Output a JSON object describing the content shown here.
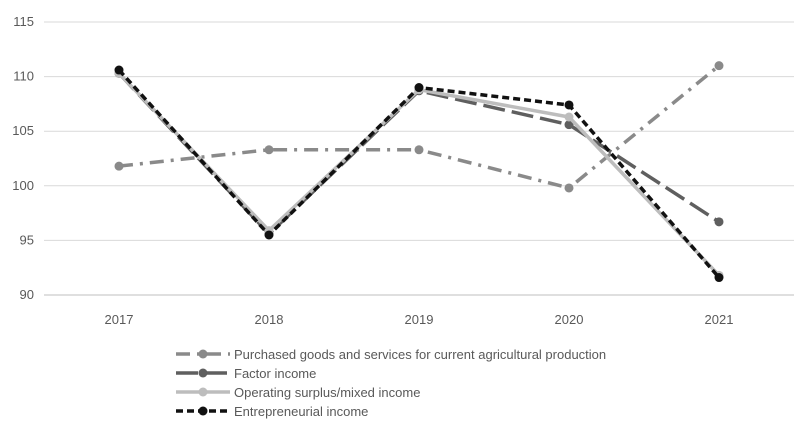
{
  "chart_data": {
    "type": "line",
    "categories": [
      "2017",
      "2018",
      "2019",
      "2020",
      "2021"
    ],
    "ylim": [
      90,
      115
    ],
    "yticks": [
      90,
      95,
      100,
      105,
      110,
      115
    ],
    "grid": true,
    "legend_position": "bottom",
    "series": [
      {
        "name": "Purchased goods and services for current agricultural production",
        "values": [
          101.8,
          103.3,
          103.3,
          99.8,
          111.0
        ],
        "color": "#8a8a8a",
        "dash": "dash-dot"
      },
      {
        "name": "Factor income",
        "values": [
          110.3,
          95.6,
          108.7,
          105.6,
          96.7
        ],
        "color": "#5f5f5f",
        "dash": "long-dash"
      },
      {
        "name": "Operating surplus/mixed income",
        "values": [
          110.3,
          95.9,
          108.8,
          106.3,
          91.8
        ],
        "color": "#bdbdbd",
        "dash": "solid"
      },
      {
        "name": "Entrepreneurial income",
        "values": [
          110.6,
          95.5,
          109.0,
          107.4,
          91.6
        ],
        "color": "#111111",
        "dash": "short-dash"
      }
    ]
  }
}
